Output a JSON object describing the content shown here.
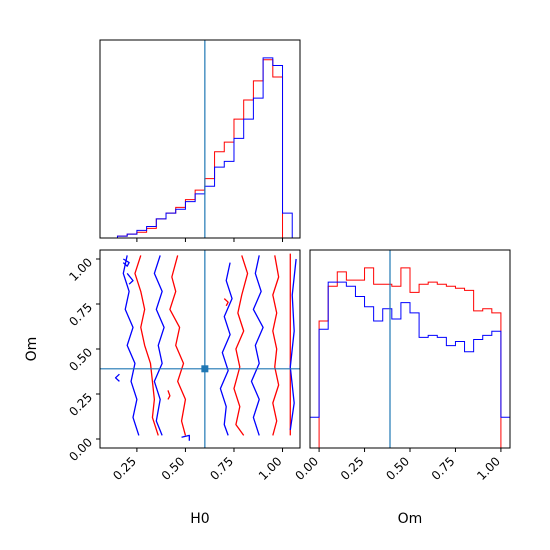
{
  "chart_data": {
    "type": "corner",
    "parameters": [
      "H0",
      "Om"
    ],
    "truth": {
      "H0": 0.6,
      "Om": 0.39
    },
    "colors": {
      "red": "#ff0000",
      "blue": "#0000ff",
      "truth": "#1f77b4"
    },
    "histograms": {
      "H0": {
        "xlim": [
          0.06,
          1.09
        ],
        "bin_edges": [
          0.15,
          0.2,
          0.25,
          0.3,
          0.35,
          0.4,
          0.45,
          0.5,
          0.55,
          0.6,
          0.65,
          0.7,
          0.75,
          0.8,
          0.85,
          0.9,
          0.95,
          1.0,
          1.05
        ],
        "series": [
          {
            "color": "red",
            "counts": [
              0.01,
              0.02,
              0.03,
              0.05,
              0.1,
              0.13,
              0.16,
              0.2,
              0.25,
              0.31,
              0.45,
              0.5,
              0.62,
              0.72,
              0.82,
              0.93,
              0.84,
              0.0
            ]
          },
          {
            "color": "blue",
            "counts": [
              0.01,
              0.02,
              0.04,
              0.06,
              0.1,
              0.13,
              0.15,
              0.19,
              0.23,
              0.27,
              0.37,
              0.4,
              0.52,
              0.62,
              0.73,
              0.94,
              0.9,
              0.13
            ]
          }
        ]
      },
      "Om": {
        "xlim": [
          -0.05,
          1.05
        ],
        "bin_edges": [
          -0.05,
          0.0,
          0.05,
          0.1,
          0.15,
          0.2,
          0.25,
          0.3,
          0.35,
          0.4,
          0.45,
          0.5,
          0.55,
          0.6,
          0.65,
          0.7,
          0.75,
          0.8,
          0.85,
          0.9,
          0.95,
          1.0,
          1.05
        ],
        "series": [
          {
            "color": "red",
            "counts": [
              0.0,
              0.62,
              0.79,
              0.86,
              0.82,
              0.82,
              0.88,
              0.8,
              0.8,
              0.79,
              0.88,
              0.76,
              0.8,
              0.81,
              0.8,
              0.79,
              0.78,
              0.77,
              0.67,
              0.68,
              0.66,
              0.0
            ]
          },
          {
            "color": "blue",
            "counts": [
              0.15,
              0.58,
              0.81,
              0.81,
              0.79,
              0.74,
              0.69,
              0.62,
              0.68,
              0.63,
              0.71,
              0.66,
              0.54,
              0.55,
              0.54,
              0.5,
              0.52,
              0.47,
              0.53,
              0.55,
              0.57,
              0.15
            ]
          }
        ]
      }
    },
    "scatter_2d": {
      "x": "H0",
      "y": "Om",
      "xlim": [
        0.06,
        1.09
      ],
      "ylim": [
        -0.05,
        1.05
      ],
      "series": [
        {
          "color": "red",
          "contours": [
            [
              [
                0.27,
                1.02
              ],
              [
                0.24,
                0.92
              ],
              [
                0.27,
                0.82
              ],
              [
                0.29,
                0.72
              ],
              [
                0.27,
                0.62
              ],
              [
                0.29,
                0.52
              ],
              [
                0.32,
                0.42
              ],
              [
                0.33,
                0.32
              ],
              [
                0.34,
                0.22
              ],
              [
                0.33,
                0.12
              ],
              [
                0.36,
                0.02
              ]
            ],
            [
              [
                0.46,
                1.02
              ],
              [
                0.43,
                0.9
              ],
              [
                0.45,
                0.82
              ],
              [
                0.42,
                0.72
              ],
              [
                0.47,
                0.62
              ],
              [
                0.45,
                0.52
              ],
              [
                0.49,
                0.42
              ],
              [
                0.46,
                0.32
              ],
              [
                0.5,
                0.22
              ],
              [
                0.48,
                0.1
              ],
              [
                0.5,
                0.02
              ]
            ],
            [
              [
                0.79,
                1.02
              ],
              [
                0.82,
                0.92
              ],
              [
                0.79,
                0.8
              ],
              [
                0.77,
                0.7
              ],
              [
                0.8,
                0.6
              ],
              [
                0.76,
                0.5
              ],
              [
                0.78,
                0.4
              ],
              [
                0.75,
                0.28
              ],
              [
                0.78,
                0.18
              ],
              [
                0.76,
                0.08
              ],
              [
                0.8,
                0.02
              ]
            ],
            [
              [
                0.96,
                1.02
              ],
              [
                0.98,
                0.9
              ],
              [
                0.95,
                0.8
              ],
              [
                0.97,
                0.7
              ],
              [
                0.95,
                0.6
              ],
              [
                0.97,
                0.5
              ],
              [
                0.96,
                0.4
              ],
              [
                0.98,
                0.3
              ],
              [
                0.95,
                0.2
              ],
              [
                0.97,
                0.1
              ],
              [
                0.95,
                0.02
              ]
            ],
            [
              [
                1.04,
                1.03
              ],
              [
                1.04,
                0.02
              ]
            ],
            [
              [
                0.7,
                0.78
              ],
              [
                0.72,
                0.76
              ],
              [
                0.71,
                0.74
              ]
            ],
            [
              [
                0.41,
                0.27
              ],
              [
                0.42,
                0.24
              ],
              [
                0.41,
                0.22
              ]
            ]
          ]
        },
        {
          "color": "blue",
          "contours": [
            [
              [
                0.2,
                1.02
              ],
              [
                0.18,
                0.92
              ],
              [
                0.21,
                0.82
              ],
              [
                0.19,
                0.72
              ],
              [
                0.23,
                0.62
              ],
              [
                0.2,
                0.52
              ],
              [
                0.24,
                0.42
              ],
              [
                0.22,
                0.32
              ],
              [
                0.25,
                0.22
              ],
              [
                0.23,
                0.12
              ],
              [
                0.26,
                0.02
              ]
            ],
            [
              [
                0.37,
                1.02
              ],
              [
                0.34,
                0.92
              ],
              [
                0.38,
                0.82
              ],
              [
                0.35,
                0.72
              ],
              [
                0.39,
                0.62
              ],
              [
                0.36,
                0.52
              ],
              [
                0.38,
                0.42
              ],
              [
                0.34,
                0.32
              ],
              [
                0.37,
                0.22
              ],
              [
                0.35,
                0.1
              ],
              [
                0.38,
                0.02
              ]
            ],
            [
              [
                0.73,
                0.98
              ],
              [
                0.71,
                0.88
              ],
              [
                0.74,
                0.78
              ],
              [
                0.7,
                0.68
              ],
              [
                0.73,
                0.58
              ],
              [
                0.69,
                0.48
              ],
              [
                0.72,
                0.38
              ],
              [
                0.68,
                0.28
              ],
              [
                0.71,
                0.18
              ],
              [
                0.7,
                0.08
              ],
              [
                0.72,
                0.02
              ]
            ],
            [
              [
                0.88,
                1.02
              ],
              [
                0.86,
                0.92
              ],
              [
                0.89,
                0.82
              ],
              [
                0.85,
                0.72
              ],
              [
                0.9,
                0.62
              ],
              [
                0.86,
                0.52
              ],
              [
                0.88,
                0.42
              ],
              [
                0.84,
                0.32
              ],
              [
                0.88,
                0.22
              ],
              [
                0.85,
                0.12
              ],
              [
                0.88,
                0.02
              ]
            ],
            [
              [
                1.07,
                1.0
              ],
              [
                1.05,
                0.8
              ],
              [
                1.06,
                0.6
              ],
              [
                1.04,
                0.4
              ],
              [
                1.06,
                0.2
              ],
              [
                1.04,
                0.05
              ]
            ],
            [
              [
                0.18,
                1.0
              ],
              [
                0.21,
                0.98
              ],
              [
                0.2,
                0.96
              ],
              [
                0.18,
                0.98
              ]
            ],
            [
              [
                0.2,
                0.92
              ],
              [
                0.23,
                0.88
              ],
              [
                0.21,
                0.86
              ]
            ],
            [
              [
                0.16,
                0.36
              ],
              [
                0.14,
                0.34
              ],
              [
                0.16,
                0.32
              ]
            ],
            [
              [
                0.48,
                0.01
              ],
              [
                0.52,
                0.02
              ],
              [
                0.52,
                -0.01
              ]
            ]
          ]
        }
      ]
    },
    "axes": {
      "xlabels": [
        "H0",
        "Om"
      ],
      "ylabel": "Om",
      "H0_ticks": [
        "0.25",
        "0.50",
        "0.75",
        "1.00"
      ],
      "Om_ticks": [
        "0.00",
        "0.25",
        "0.50",
        "0.75",
        "1.00"
      ]
    }
  }
}
